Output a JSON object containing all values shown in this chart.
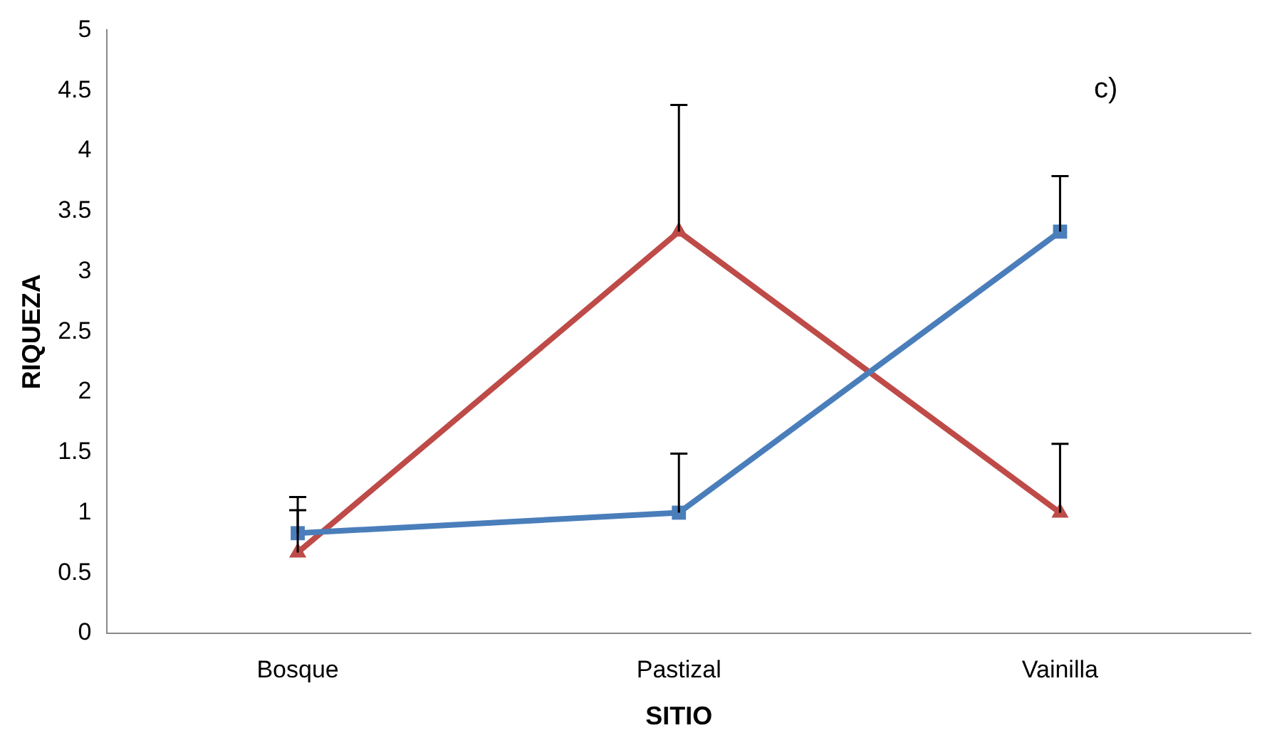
{
  "chart_data": {
    "type": "line",
    "xlabel": "SITIO",
    "ylabel": "RIQUEZA",
    "annotations": [
      "c)"
    ],
    "categories": [
      "Bosque",
      "Pastizal",
      "Vainilla"
    ],
    "series": [
      {
        "color": "#4a7ebb",
        "marker": "square",
        "values": [
          0.83,
          1.0,
          3.33
        ],
        "errors": [
          [
            0.83,
            1.13
          ],
          [
            1.0,
            1.49
          ],
          [
            3.33,
            3.79
          ]
        ]
      },
      {
        "color": "#be4b48",
        "marker": "triangle",
        "values": [
          0.67,
          3.33,
          1.0
        ],
        "errors": [
          [
            0.67,
            1.02
          ],
          [
            3.33,
            4.38
          ],
          [
            1.0,
            1.57
          ]
        ]
      }
    ],
    "ylim": [
      0,
      5
    ],
    "yticks": [
      0,
      0.5,
      1,
      1.5,
      2,
      2.5,
      3,
      3.5,
      4,
      4.5,
      5
    ],
    "grid": false,
    "legend": false,
    "line_style": "solid"
  }
}
